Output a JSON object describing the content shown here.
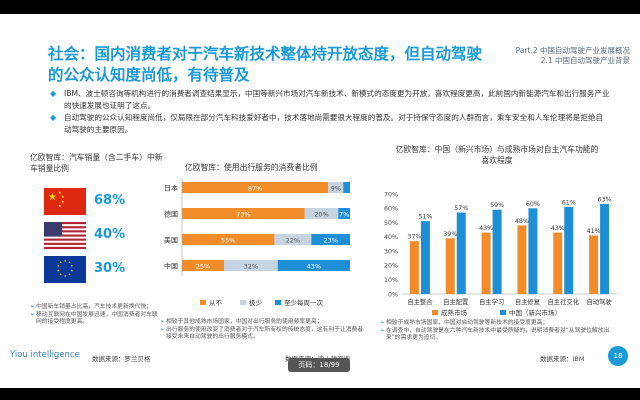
{
  "header": {
    "title": "社会：国内消费者对于汽车新技术整体持开放态度，但自动驾驶的公众认知度尚低，有待普及",
    "section_line1": "Part.2 中国自动驾驶产业发展概况",
    "section_line2": "2.1 中国自动驾驶产业背景"
  },
  "bullets": [
    "IBM、波士顿咨询等机构进行的消费者调查结果显示，中国等新兴市场对汽车新技术、新模式的态度更为开放，喜欢程度更高，此前国内新能源汽车和出行服务产业的快速发展也证明了这点。",
    "自动驾驶的公众认知程度尚低，仅局限在部分汽车科技爱好者中，技术落地尚需要很大程度的普及。对于持保守态度的人群而言，乘车安全和人车伦理将是拒绝自动驾驶的主要原因。"
  ],
  "panel1": {
    "heading": "亿欧智库：汽车销量（含二手车）中新车销量比例",
    "rows": [
      {
        "country": "中国",
        "value": "68%"
      },
      {
        "country": "美国",
        "value": "40%"
      },
      {
        "country": "欧盟",
        "value": "30%"
      }
    ],
    "notes": [
      "中国新车销量占比高，汽车技术更新换代快；",
      "移动互联网在中国发展迅速，中国消费者对车联网的接受程度更高。"
    ],
    "source": "数据来源：罗兰贝格"
  },
  "panel2": {
    "heading": "亿欧智库：使用出行服务的消费者比例",
    "notes": [
      "相较于其他成熟市场国家，中国对出行服务的使用频率更高；",
      "出行服务的使用改变了消费者对于汽车所有权的传统态度，这有利于让消费者接受未来自动驾驶的出行服务模式。"
    ],
    "source": "数据来源：波士顿咨询",
    "legend": [
      "从不",
      "极少",
      "至少每周一次"
    ],
    "colors": [
      "#f28c28",
      "#c6d3e0",
      "#1e8fd6"
    ]
  },
  "panel3": {
    "heading": "亿欧智库：中国（新兴市场）与成熟市场对自主汽车功能的喜欢程度",
    "notes": [
      "相较于成熟市场国家，中国对自动驾驶等新技术的接受度更高；",
      "在调查中，自动驾驶是在六种汽车新技术中最受质疑的，说明消费者对“从驾驶位解放出来”的需求更为迫切。"
    ],
    "source": "数据来源：IBM",
    "legend": [
      "成熟市场",
      "中国（新兴市场）"
    ],
    "colors": [
      "#f28c28",
      "#1e8fd6"
    ]
  },
  "footer": {
    "brand": "Yiou intelligence",
    "page": "18",
    "viewer": "页码：18/99"
  },
  "chart_data": [
    {
      "type": "bar",
      "orientation": "horizontal-stacked",
      "categories": [
        "日本",
        "德国",
        "美国",
        "中国"
      ],
      "series": [
        {
          "name": "从不",
          "values": [
            87,
            73,
            55,
            25
          ],
          "labels": [
            "87%",
            "73%",
            "55%",
            "25%"
          ]
        },
        {
          "name": "极少",
          "values": [
            9,
            20,
            22,
            32
          ],
          "labels": [
            "9%",
            "20%",
            "22%",
            "32%"
          ]
        },
        {
          "name": "至少每周一次",
          "values": [
            4,
            7,
            23,
            43
          ],
          "labels": [
            "",
            "7%",
            "23%",
            "43%"
          ]
        }
      ],
      "xlim": [
        0,
        100
      ]
    },
    {
      "type": "bar",
      "categories": [
        "自主整合",
        "自主配置",
        "自主学习",
        "自主修复",
        "自主社交化",
        "自动驾驶"
      ],
      "series": [
        {
          "name": "成熟市场",
          "values": [
            37,
            39,
            43,
            48,
            43,
            41
          ]
        },
        {
          "name": "中国（新兴市场）",
          "values": [
            51,
            57,
            59,
            60,
            61,
            63
          ]
        }
      ],
      "yticks": [
        "0%",
        "10%",
        "20%",
        "30%",
        "40%",
        "50%",
        "60%",
        "70%"
      ],
      "ylim": [
        0,
        70
      ]
    }
  ]
}
